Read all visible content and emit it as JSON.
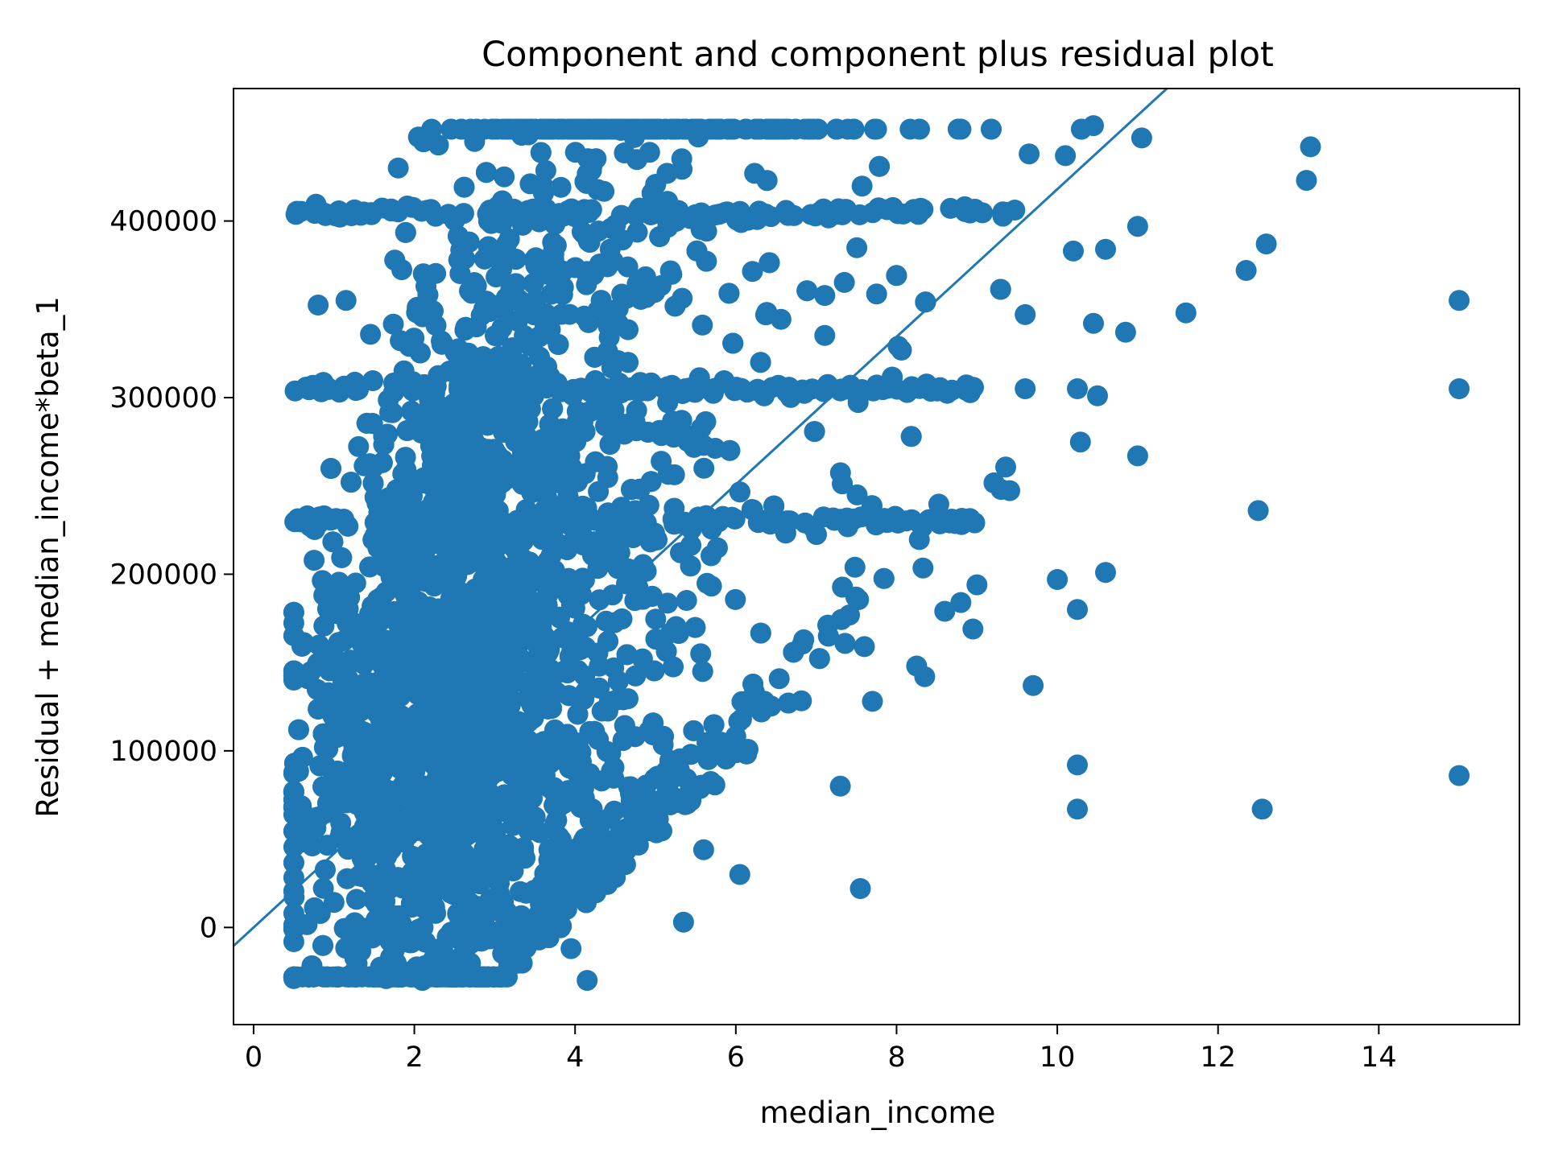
{
  "chart_data": {
    "type": "scatter",
    "title": "Component and component plus residual plot",
    "xlabel": "median_income",
    "ylabel": "Residual + median_income*beta_1",
    "xlim": [
      -0.25,
      15.75
    ],
    "ylim": [
      -55000,
      475000
    ],
    "x_ticks": [
      {
        "value": 0,
        "label": "0"
      },
      {
        "value": 2,
        "label": "2"
      },
      {
        "value": 4,
        "label": "4"
      },
      {
        "value": 6,
        "label": "6"
      },
      {
        "value": 8,
        "label": "8"
      },
      {
        "value": 10,
        "label": "10"
      },
      {
        "value": 12,
        "label": "12"
      },
      {
        "value": 14,
        "label": "14"
      }
    ],
    "y_ticks": [
      {
        "value": 0,
        "label": "0"
      },
      {
        "value": 100000,
        "label": "100000"
      },
      {
        "value": 200000,
        "label": "200000"
      },
      {
        "value": 300000,
        "label": "300000"
      },
      {
        "value": 400000,
        "label": "400000"
      }
    ],
    "grid": false,
    "legend": "none",
    "color": "#1f77b4",
    "fit_line": {
      "intercept": 0,
      "slope": 41800
    },
    "dense_region": {
      "description_free_points": true,
      "x_range": [
        0.5,
        10.5
      ],
      "y_range": [
        -30000,
        455000
      ]
    },
    "outlier_points": [
      [
        15.0,
        355000
      ],
      [
        15.0,
        305000
      ],
      [
        15.0,
        86000
      ],
      [
        13.15,
        442000
      ],
      [
        13.1,
        423000
      ],
      [
        12.6,
        387000
      ],
      [
        12.35,
        372000
      ],
      [
        12.5,
        236000
      ],
      [
        12.55,
        67000
      ],
      [
        11.6,
        348000
      ],
      [
        11.0,
        397000
      ],
      [
        11.0,
        267000
      ],
      [
        11.05,
        447000
      ],
      [
        10.85,
        337000
      ],
      [
        10.6,
        201000
      ],
      [
        10.45,
        454000
      ],
      [
        10.5,
        301000
      ],
      [
        10.45,
        342000
      ],
      [
        10.25,
        305000
      ],
      [
        10.25,
        180000
      ],
      [
        10.25,
        92000
      ],
      [
        10.25,
        67000
      ],
      [
        10.0,
        197000
      ],
      [
        9.7,
        137000
      ],
      [
        9.6,
        305000
      ],
      [
        9.6,
        347000
      ],
      [
        9.3,
        248000
      ],
      [
        9.0,
        194000
      ],
      [
        8.95,
        169000
      ],
      [
        8.8,
        184000
      ],
      [
        8.6,
        179000
      ],
      [
        8.35,
        142000
      ],
      [
        8.25,
        148000
      ],
      [
        7.55,
        22000
      ],
      [
        7.7,
        128000
      ],
      [
        7.6,
        159000
      ],
      [
        7.3,
        80000
      ],
      [
        6.05,
        30000
      ],
      [
        5.35,
        3000
      ],
      [
        5.6,
        44000
      ],
      [
        4.15,
        -30000
      ],
      [
        3.95,
        -12000
      ],
      [
        3.6,
        -3000
      ],
      [
        3.0,
        -5000
      ],
      [
        2.55,
        -18000
      ],
      [
        2.1,
        -30000
      ],
      [
        1.65,
        -29000
      ],
      [
        0.5,
        -29000
      ],
      [
        0.85,
        405000
      ],
      [
        1.15,
        355000
      ],
      [
        1.8,
        430000
      ],
      [
        2.3,
        443000
      ],
      [
        2.75,
        445000
      ],
      [
        9.65,
        438000
      ],
      [
        10.1,
        437000
      ],
      [
        10.2,
        383000
      ],
      [
        10.6,
        384000
      ]
    ]
  }
}
